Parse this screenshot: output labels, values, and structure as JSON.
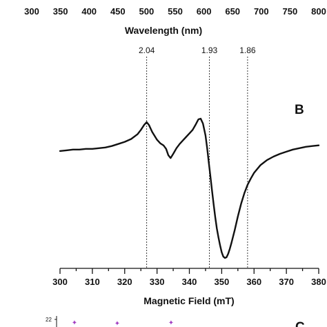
{
  "chart_data": [
    {
      "type": "line",
      "panel": "top (cropped)",
      "xlabel": "Wavelength (nm)",
      "tick_labels": [
        "300",
        "350",
        "400",
        "450",
        "500",
        "550",
        "600",
        "650",
        "700",
        "750",
        "800"
      ],
      "xlim": [
        300,
        800
      ]
    },
    {
      "type": "line",
      "panel_label": "B",
      "xlabel": "Magnetic Field (mT)",
      "ylabel": "",
      "xlim": [
        300,
        380
      ],
      "tick_labels": [
        "300",
        "310",
        "320",
        "330",
        "340",
        "350",
        "360",
        "370",
        "380"
      ],
      "grid": false,
      "reference_lines": [
        {
          "label": "2.04",
          "x": 326.8
        },
        {
          "label": "1.93",
          "x": 346.2
        },
        {
          "label": "1.86",
          "x": 358.0
        }
      ],
      "series": [
        {
          "x": [
            300,
            302,
            304,
            306,
            308,
            310,
            312,
            314,
            316,
            318,
            320,
            322,
            324,
            325,
            326,
            326.8,
            327.5,
            328.5,
            330,
            331,
            332,
            332.8,
            333.5,
            334.2,
            335,
            336,
            337,
            338,
            339,
            340,
            341,
            342,
            342.8,
            343.5,
            344.2,
            345,
            345.5,
            346,
            346.5,
            347,
            347.5,
            348,
            348.5,
            349,
            349.5,
            350,
            350.5,
            351,
            351.5,
            352,
            352.5,
            353,
            354,
            355,
            356,
            357,
            358,
            359,
            360,
            362,
            364,
            366,
            368,
            370,
            372,
            374,
            376,
            378,
            380
          ],
          "y": [
            0.06,
            0.07,
            0.08,
            0.08,
            0.09,
            0.09,
            0.1,
            0.11,
            0.13,
            0.16,
            0.19,
            0.23,
            0.3,
            0.36,
            0.43,
            0.47,
            0.43,
            0.33,
            0.22,
            0.17,
            0.14,
            0.09,
            0.0,
            -0.04,
            0.02,
            0.1,
            0.16,
            0.21,
            0.26,
            0.31,
            0.36,
            0.44,
            0.51,
            0.52,
            0.45,
            0.28,
            0.1,
            -0.1,
            -0.3,
            -0.5,
            -0.7,
            -0.88,
            -1.04,
            -1.17,
            -1.28,
            -1.38,
            -1.44,
            -1.46,
            -1.45,
            -1.4,
            -1.33,
            -1.25,
            -1.07,
            -0.87,
            -0.69,
            -0.54,
            -0.42,
            -0.33,
            -0.25,
            -0.14,
            -0.07,
            -0.02,
            0.02,
            0.05,
            0.08,
            0.1,
            0.12,
            0.13,
            0.14
          ]
        }
      ]
    },
    {
      "type": "scatter",
      "panel_label": "C",
      "panel": "bottom (cropped)",
      "visible_tick_labels": [
        "22"
      ],
      "marker_color": "#a23fc2"
    }
  ]
}
